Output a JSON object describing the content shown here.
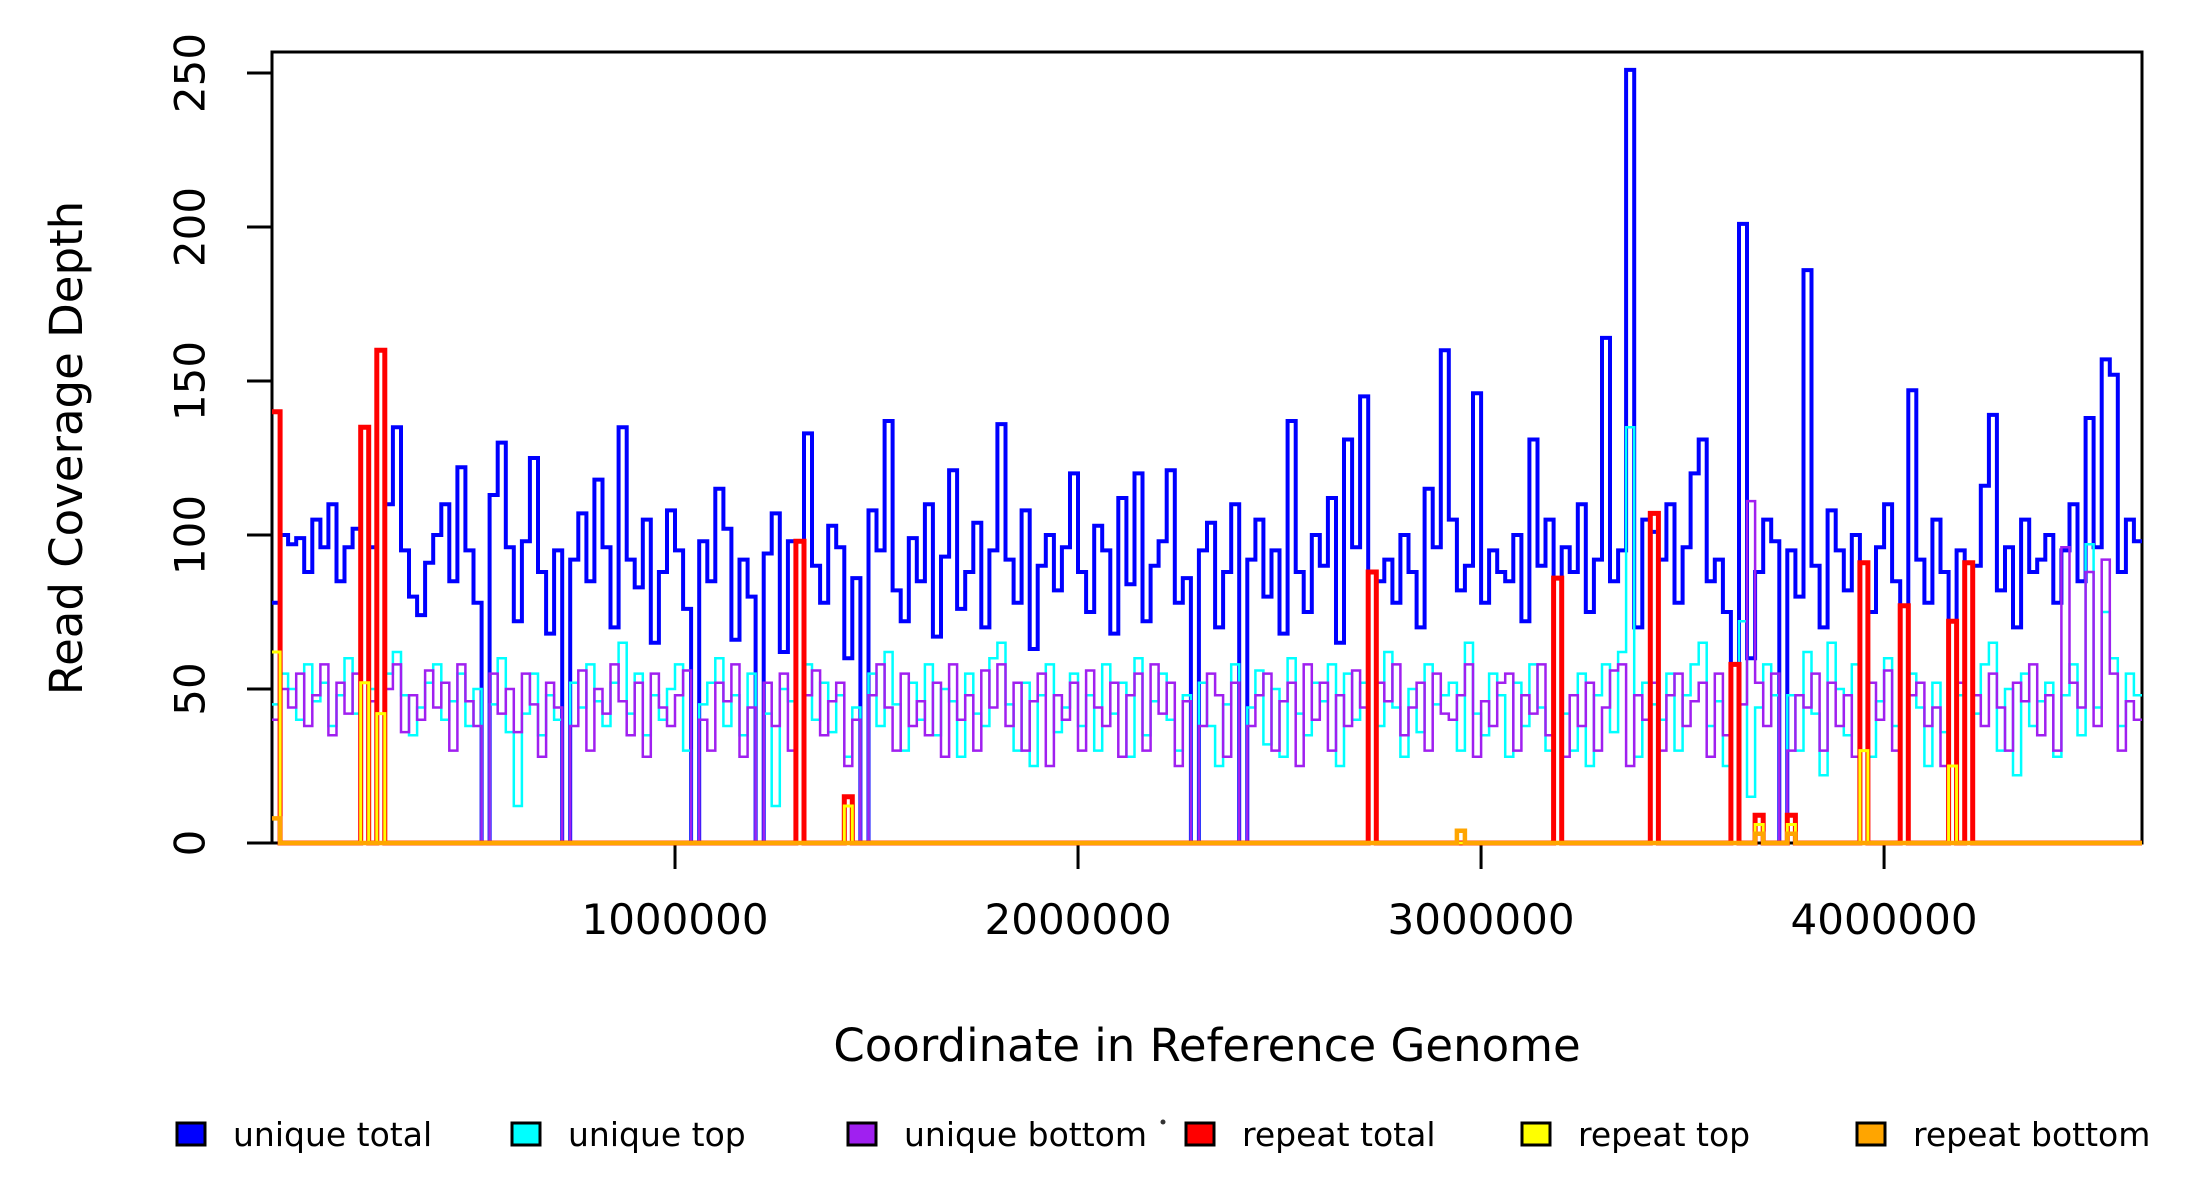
{
  "figure": {
    "background": "#ffffff",
    "frame_color": "#000000"
  },
  "chart_data": {
    "type": "line",
    "subtype": "step-coverage-plot",
    "title": "",
    "xlabel": "Coordinate in Reference Genome",
    "ylabel": "Read Coverage Depth",
    "xlim": [
      0,
      4640000
    ],
    "ylim": [
      0,
      250
    ],
    "grid": "off",
    "legend_position": "bottom",
    "bin_size": 20000,
    "x_ticks": [
      {
        "value": 1000000,
        "label": "1000000"
      },
      {
        "value": 2000000,
        "label": "2000000"
      },
      {
        "value": 3000000,
        "label": "3000000"
      },
      {
        "value": 4000000,
        "label": "4000000"
      }
    ],
    "y_ticks": [
      {
        "value": 0,
        "label": "0"
      },
      {
        "value": 50,
        "label": "50"
      },
      {
        "value": 100,
        "label": "100"
      },
      {
        "value": 150,
        "label": "150"
      },
      {
        "value": 200,
        "label": "200"
      },
      {
        "value": 250,
        "label": "250"
      }
    ],
    "series": [
      {
        "name": "unique total",
        "color": "#0000FF",
        "values": [
          78,
          100,
          97,
          99,
          88,
          105,
          96,
          110,
          85,
          96,
          102,
          0,
          96,
          0,
          110,
          135,
          95,
          80,
          74,
          91,
          100,
          110,
          85,
          122,
          95,
          78,
          0,
          113,
          130,
          96,
          72,
          98,
          125,
          88,
          68,
          95,
          0,
          92,
          107,
          85,
          118,
          96,
          70,
          135,
          92,
          83,
          105,
          65,
          88,
          108,
          95,
          76,
          0,
          98,
          85,
          115,
          102,
          66,
          92,
          80,
          0,
          94,
          107,
          62,
          98,
          0,
          133,
          90,
          78,
          103,
          96,
          60,
          86,
          0,
          108,
          95,
          137,
          82,
          72,
          99,
          85,
          110,
          67,
          93,
          121,
          76,
          88,
          104,
          70,
          95,
          136,
          92,
          78,
          108,
          63,
          90,
          100,
          82,
          96,
          120,
          88,
          75,
          103,
          95,
          68,
          112,
          84,
          120,
          72,
          90,
          98,
          121,
          78,
          86,
          0,
          95,
          104,
          70,
          88,
          110,
          0,
          92,
          105,
          80,
          95,
          68,
          137,
          88,
          75,
          100,
          90,
          112,
          65,
          131,
          96,
          145,
          0,
          85,
          92,
          78,
          100,
          88,
          70,
          115,
          96,
          160,
          105,
          82,
          90,
          146,
          78,
          95,
          88,
          85,
          100,
          72,
          131,
          90,
          105,
          0,
          96,
          88,
          110,
          75,
          92,
          164,
          85,
          95,
          251,
          70,
          105,
          101,
          92,
          110,
          78,
          96,
          120,
          131,
          85,
          92,
          75,
          0,
          201,
          60,
          88,
          105,
          98,
          0,
          95,
          80,
          186,
          90,
          70,
          108,
          95,
          82,
          100,
          0,
          75,
          96,
          110,
          85,
          0,
          147,
          92,
          78,
          105,
          88,
          0,
          95,
          0,
          90,
          116,
          139,
          82,
          96,
          70,
          105,
          88,
          92,
          100,
          78,
          95,
          110,
          85,
          138,
          96,
          157,
          152,
          88,
          105,
          98
        ]
      },
      {
        "name": "unique top",
        "color": "#00FFFF",
        "values": [
          45,
          55,
          50,
          40,
          58,
          46,
          52,
          38,
          48,
          60,
          42,
          0,
          50,
          0,
          55,
          62,
          48,
          35,
          44,
          52,
          58,
          40,
          46,
          55,
          38,
          50,
          0,
          45,
          60,
          36,
          12,
          42,
          55,
          35,
          48,
          40,
          0,
          52,
          44,
          58,
          46,
          38,
          52,
          65,
          42,
          55,
          35,
          48,
          40,
          50,
          58,
          30,
          0,
          45,
          52,
          60,
          38,
          48,
          35,
          55,
          0,
          42,
          12,
          50,
          46,
          0,
          58,
          40,
          52,
          36,
          48,
          28,
          44,
          0,
          55,
          38,
          62,
          45,
          30,
          52,
          40,
          58,
          35,
          50,
          46,
          28,
          55,
          42,
          38,
          60,
          65,
          45,
          30,
          52,
          25,
          48,
          58,
          36,
          44,
          55,
          38,
          48,
          30,
          58,
          42,
          52,
          28,
          60,
          35,
          46,
          55,
          40,
          30,
          48,
          0,
          52,
          38,
          25,
          45,
          58,
          0,
          44,
          56,
          32,
          50,
          28,
          60,
          42,
          35,
          52,
          46,
          58,
          25,
          55,
          40,
          52,
          0,
          38,
          62,
          44,
          28,
          50,
          36,
          58,
          45,
          48,
          52,
          30,
          65,
          42,
          35,
          55,
          48,
          28,
          52,
          38,
          58,
          44,
          30,
          0,
          42,
          30,
          55,
          25,
          48,
          58,
          36,
          62,
          135,
          28,
          52,
          45,
          40,
          55,
          30,
          48,
          58,
          65,
          38,
          46,
          25,
          0,
          72,
          15,
          44,
          58,
          48,
          0,
          48,
          30,
          62,
          42,
          22,
          65,
          50,
          35,
          58,
          0,
          28,
          46,
          60,
          38,
          0,
          55,
          44,
          25,
          52,
          36,
          0,
          48,
          0,
          42,
          58,
          65,
          30,
          50,
          22,
          55,
          38,
          46,
          52,
          28,
          48,
          58,
          35,
          97,
          44,
          75,
          60,
          38,
          55,
          48
        ]
      },
      {
        "name": "unique bottom",
        "color": "#A020F0",
        "values": [
          40,
          50,
          44,
          55,
          38,
          48,
          58,
          35,
          52,
          42,
          55,
          0,
          46,
          0,
          50,
          58,
          36,
          48,
          40,
          56,
          44,
          52,
          30,
          58,
          46,
          38,
          0,
          55,
          42,
          50,
          36,
          55,
          45,
          28,
          52,
          44,
          0,
          38,
          56,
          30,
          50,
          42,
          58,
          46,
          35,
          52,
          28,
          55,
          44,
          38,
          48,
          56,
          0,
          40,
          30,
          52,
          46,
          58,
          28,
          44,
          0,
          52,
          38,
          55,
          30,
          0,
          48,
          56,
          35,
          46,
          52,
          25,
          40,
          0,
          48,
          58,
          44,
          30,
          55,
          38,
          46,
          35,
          52,
          28,
          58,
          40,
          48,
          30,
          56,
          44,
          58,
          38,
          52,
          30,
          46,
          55,
          25,
          48,
          40,
          52,
          30,
          56,
          44,
          38,
          52,
          28,
          48,
          55,
          30,
          58,
          42,
          52,
          25,
          46,
          0,
          38,
          55,
          48,
          28,
          52,
          0,
          38,
          48,
          55,
          30,
          46,
          52,
          25,
          58,
          40,
          52,
          30,
          48,
          38,
          56,
          44,
          0,
          52,
          46,
          58,
          35,
          44,
          52,
          30,
          55,
          42,
          40,
          48,
          58,
          28,
          46,
          38,
          52,
          55,
          30,
          48,
          42,
          58,
          35,
          0,
          28,
          48,
          38,
          52,
          30,
          44,
          56,
          58,
          25,
          48,
          40,
          52,
          30,
          48,
          55,
          38,
          46,
          52,
          28,
          55,
          35,
          0,
          45,
          111,
          52,
          38,
          55,
          0,
          30,
          48,
          44,
          55,
          30,
          52,
          38,
          48,
          28,
          0,
          52,
          40,
          56,
          30,
          0,
          48,
          52,
          38,
          44,
          25,
          0,
          52,
          0,
          48,
          38,
          55,
          44,
          30,
          52,
          46,
          58,
          35,
          48,
          30,
          96,
          52,
          44,
          88,
          38,
          92,
          55,
          30,
          46,
          40
        ]
      },
      {
        "name": "repeat total",
        "color": "#FF0000",
        "values_sparse": {
          "0": 140,
          "11": 135,
          "13": 160,
          "65": 98,
          "71": 15,
          "136": 88,
          "159": 86,
          "171": 107,
          "181": 58,
          "184": 9,
          "188": 9,
          "197": 91,
          "202": 77,
          "208": 72,
          "210": 91
        }
      },
      {
        "name": "repeat top",
        "color": "#FFFF00",
        "values_sparse": {
          "0": 62,
          "11": 52,
          "13": 42,
          "71": 12,
          "184": 6,
          "188": 6,
          "197": 30,
          "208": 25
        }
      },
      {
        "name": "repeat bottom",
        "color": "#FFA500",
        "values_sparse": {
          "0": 8,
          "147": 4,
          "184": 3,
          "188": 3
        }
      }
    ]
  }
}
